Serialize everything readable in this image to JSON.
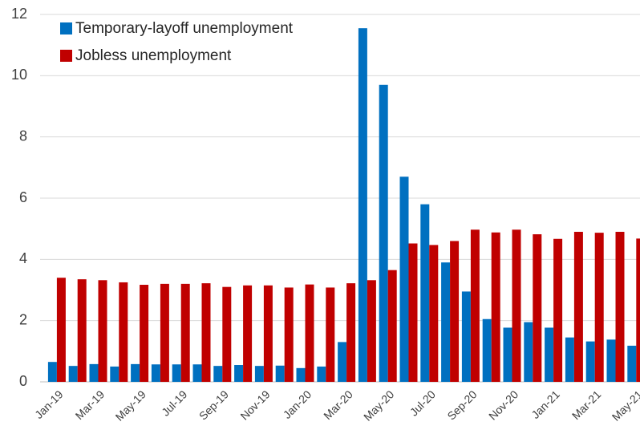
{
  "chart_data": {
    "type": "bar",
    "categories": [
      "Jan-19",
      null,
      "Mar-19",
      null,
      "May-19",
      null,
      "Jul-19",
      null,
      "Sep-19",
      null,
      "Nov-19",
      null,
      "Jan-20",
      null,
      "Mar-20",
      null,
      "May-20",
      null,
      "Jul-20",
      null,
      "Sep-20",
      null,
      "Nov-20",
      null,
      "Jan-21",
      null,
      "Mar-21",
      null,
      "May-21"
    ],
    "series": [
      {
        "name": "Temporary-layoff unemployment",
        "color": "#0070c0",
        "values": [
          0.65,
          0.52,
          0.58,
          0.5,
          0.58,
          0.57,
          0.57,
          0.57,
          0.52,
          0.55,
          0.52,
          0.53,
          0.45,
          0.5,
          1.3,
          11.55,
          9.7,
          6.7,
          5.8,
          3.9,
          2.95,
          2.05,
          1.77,
          1.95,
          1.77,
          1.45,
          1.32,
          1.38,
          1.18
        ]
      },
      {
        "name": "Jobless unemployment",
        "color": "#c00000",
        "values": [
          3.4,
          3.35,
          3.32,
          3.25,
          3.17,
          3.2,
          3.2,
          3.22,
          3.1,
          3.15,
          3.15,
          3.08,
          3.18,
          3.08,
          3.22,
          3.32,
          3.65,
          4.52,
          4.47,
          4.6,
          4.97,
          4.88,
          4.97,
          4.82,
          4.67,
          4.9,
          4.87,
          4.9,
          4.68
        ]
      }
    ],
    "ylim": [
      0,
      12
    ],
    "yticks": [
      0,
      2,
      4,
      6,
      8,
      10,
      12
    ],
    "grid": true,
    "legend": "top-left"
  }
}
